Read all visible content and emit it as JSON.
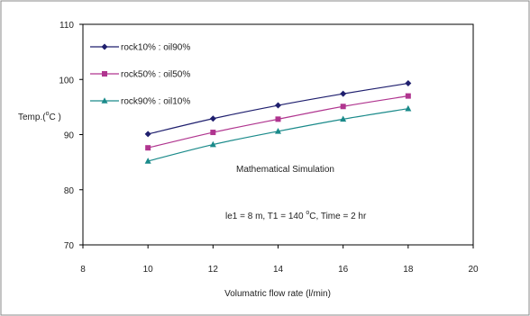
{
  "chart_data": {
    "type": "line",
    "title": "",
    "xlabel": "Volumatric  flow  rate (l/min)",
    "ylabel_main": "Temp.(",
    "ylabel_super": "o",
    "ylabel_end": "C )",
    "xlim": [
      8,
      20
    ],
    "ylim": [
      70,
      110
    ],
    "xticks": [
      8,
      10,
      12,
      14,
      16,
      18,
      20
    ],
    "yticks": [
      70,
      80,
      90,
      100,
      110
    ],
    "grid": false,
    "legend_position": "top-left",
    "series": [
      {
        "name": "rock10% : oil90%",
        "color": "#1f1f6e",
        "marker": "diamond",
        "x": [
          10,
          12,
          14,
          16,
          18
        ],
        "y": [
          90.1,
          92.9,
          95.3,
          97.4,
          99.3
        ]
      },
      {
        "name": "rock50% : oil50%",
        "color": "#b0358f",
        "marker": "square",
        "x": [
          10,
          12,
          14,
          16,
          18
        ],
        "y": [
          87.6,
          90.4,
          92.8,
          95.1,
          97.0
        ]
      },
      {
        "name": "rock90% : oil10%",
        "color": "#1a8a8a",
        "marker": "triangle",
        "x": [
          10,
          12,
          14,
          16,
          18
        ],
        "y": [
          85.2,
          88.2,
          90.6,
          92.8,
          94.7
        ]
      }
    ],
    "annotations": {
      "simulation": "Mathematical Simulation",
      "params_a": "le1 = 8 m, T1 = 140 ",
      "params_super": "o",
      "params_b": "C, Time = 2 hr"
    }
  }
}
